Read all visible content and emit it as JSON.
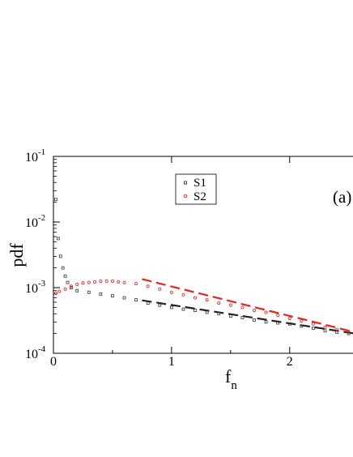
{
  "chart_data": {
    "type": "scatter",
    "panel_label": "(a)",
    "xlabel": "f",
    "xlabel_sub": "n",
    "ylabel": "pdf",
    "xlim": [
      0,
      2.55
    ],
    "ylim": [
      0.0001,
      0.1
    ],
    "yscale": "log",
    "x_ticks": [
      {
        "value": 0,
        "label": "0"
      },
      {
        "value": 1,
        "label": "1"
      },
      {
        "value": 2,
        "label": "2"
      }
    ],
    "y_ticks": [
      {
        "value": 0.1,
        "base": "10",
        "exp": "-1"
      },
      {
        "value": 0.01,
        "base": "10",
        "exp": "-2"
      },
      {
        "value": 0.001,
        "base": "10",
        "exp": "-3"
      },
      {
        "value": 0.0001,
        "base": "10",
        "exp": "-4"
      }
    ],
    "legend": {
      "position": "top-center"
    },
    "series": [
      {
        "name": "S1",
        "color": "#333333",
        "marker": "square",
        "x": [
          0.02,
          0.04,
          0.06,
          0.08,
          0.1,
          0.12,
          0.15,
          0.2,
          0.3,
          0.4,
          0.5,
          0.6,
          0.7,
          0.8,
          0.9,
          1.0,
          1.1,
          1.2,
          1.3,
          1.4,
          1.5,
          1.6,
          1.7,
          1.8,
          1.9,
          2.0,
          2.1,
          2.2,
          2.3,
          2.4,
          2.5
        ],
        "y": [
          0.022,
          0.0056,
          0.003,
          0.002,
          0.0015,
          0.0012,
          0.001,
          0.0009,
          0.00085,
          0.0008,
          0.00075,
          0.0007,
          0.00065,
          0.00058,
          0.00054,
          0.0005,
          0.00047,
          0.00045,
          0.00042,
          0.0004,
          0.00037,
          0.00035,
          0.00032,
          0.0003,
          0.00029,
          0.00028,
          0.00026,
          0.00024,
          0.00022,
          0.00021,
          0.0002
        ]
      },
      {
        "name": "S2",
        "color": "#e8231e",
        "marker": "circle",
        "x": [
          0.02,
          0.05,
          0.1,
          0.15,
          0.2,
          0.25,
          0.3,
          0.35,
          0.4,
          0.45,
          0.5,
          0.55,
          0.6,
          0.7,
          0.8,
          0.9,
          1.0,
          1.1,
          1.2,
          1.3,
          1.4,
          1.5,
          1.6,
          1.7,
          1.8,
          1.9,
          2.0,
          2.1,
          2.2,
          2.3,
          2.4,
          2.5
        ],
        "y": [
          0.00082,
          0.00088,
          0.00095,
          0.00105,
          0.00112,
          0.00118,
          0.0012,
          0.00122,
          0.00125,
          0.00126,
          0.00125,
          0.00123,
          0.0012,
          0.00115,
          0.00105,
          0.00095,
          0.00085,
          0.00078,
          0.0007,
          0.00065,
          0.00058,
          0.00054,
          0.0005,
          0.00045,
          0.00042,
          0.00038,
          0.00034,
          0.00031,
          0.00028,
          0.00025,
          0.00023,
          0.00021
        ]
      }
    ],
    "fit_lines": [
      {
        "color": "#222222",
        "dash": "long",
        "x": [
          0.75,
          2.55
        ],
        "y": [
          0.00064,
          0.0002
        ]
      },
      {
        "color": "#e8231e",
        "dash": "long",
        "x": [
          0.75,
          2.55
        ],
        "y": [
          0.00135,
          0.00021
        ]
      }
    ]
  }
}
